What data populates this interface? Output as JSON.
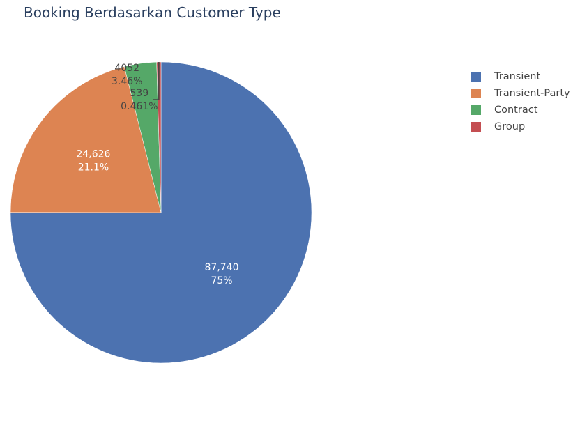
{
  "chart_data": {
    "type": "pie",
    "title": "Booking Berdasarkan Customer Type",
    "categories": [
      "Transient",
      "Transient-Party",
      "Contract",
      "Group"
    ],
    "values": [
      87740,
      24626,
      4052,
      539
    ],
    "value_labels": [
      "87,740",
      "24,626",
      "4052",
      "539"
    ],
    "percent_labels": [
      "75%",
      "21.1%",
      "3.46%",
      "0.461%"
    ],
    "colors": [
      "#4c72b0",
      "#dd8452",
      "#55a868",
      "#c44e52"
    ],
    "direction": "clockwise",
    "legend": "top-right"
  }
}
